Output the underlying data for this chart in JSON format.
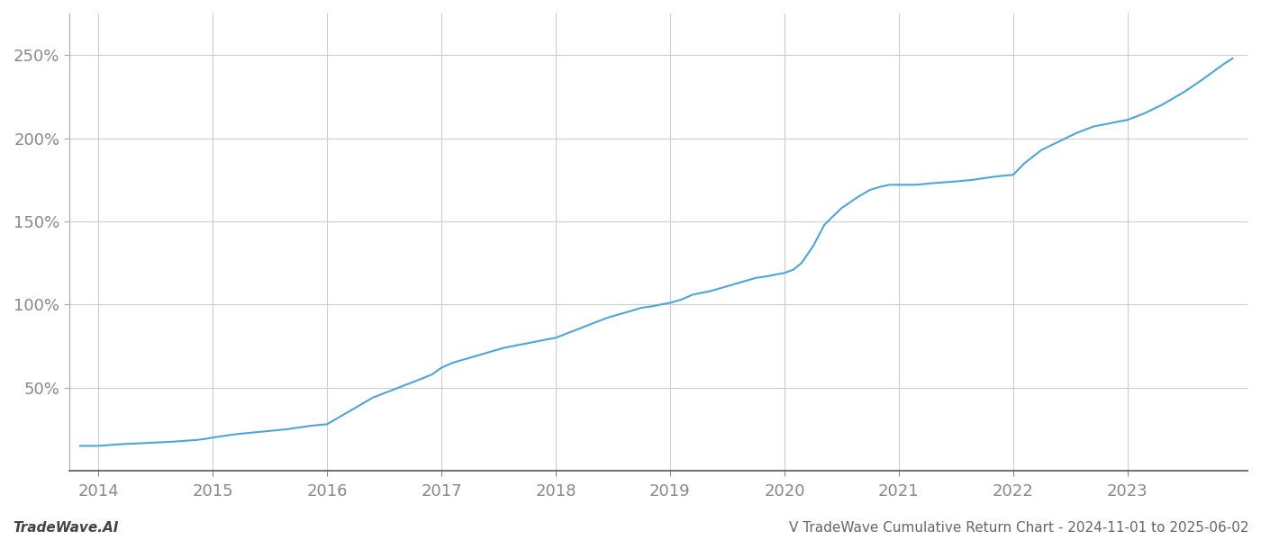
{
  "title_right": "V TradeWave Cumulative Return Chart - 2024-11-01 to 2025-06-02",
  "title_left": "TradeWave.AI",
  "line_color": "#4da6d9",
  "background_color": "#ffffff",
  "grid_color": "#cccccc",
  "x_years": [
    2014,
    2015,
    2016,
    2017,
    2018,
    2019,
    2020,
    2021,
    2022,
    2023
  ],
  "data_points": {
    "x": [
      2013.84,
      2013.92,
      2014.0,
      2014.1,
      2014.2,
      2014.35,
      2014.5,
      2014.65,
      2014.75,
      2014.85,
      2014.92,
      2015.0,
      2015.1,
      2015.2,
      2015.35,
      2015.5,
      2015.65,
      2015.75,
      2015.85,
      2015.92,
      2016.0,
      2016.1,
      2016.25,
      2016.4,
      2016.55,
      2016.7,
      2016.85,
      2016.92,
      2017.0,
      2017.1,
      2017.25,
      2017.4,
      2017.55,
      2017.7,
      2017.85,
      2017.92,
      2018.0,
      2018.15,
      2018.3,
      2018.45,
      2018.6,
      2018.75,
      2018.85,
      2018.92,
      2019.0,
      2019.1,
      2019.2,
      2019.35,
      2019.5,
      2019.65,
      2019.75,
      2019.85,
      2019.92,
      2020.0,
      2020.08,
      2020.15,
      2020.25,
      2020.35,
      2020.5,
      2020.65,
      2020.75,
      2020.85,
      2020.92,
      2021.0,
      2021.15,
      2021.3,
      2021.5,
      2021.65,
      2021.75,
      2021.85,
      2021.92,
      2022.0,
      2022.1,
      2022.25,
      2022.4,
      2022.55,
      2022.7,
      2022.85,
      2022.92,
      2023.0,
      2023.15,
      2023.3,
      2023.5,
      2023.65,
      2023.75,
      2023.85,
      2023.92
    ],
    "y": [
      15,
      15,
      15,
      15.5,
      16,
      16.5,
      17,
      17.5,
      18,
      18.5,
      19,
      20,
      21,
      22,
      23,
      24,
      25,
      26,
      27,
      27.5,
      28,
      32,
      38,
      44,
      48,
      52,
      56,
      58,
      62,
      65,
      68,
      71,
      74,
      76,
      78,
      79,
      80,
      84,
      88,
      92,
      95,
      98,
      99,
      100,
      101,
      103,
      106,
      108,
      111,
      114,
      116,
      117,
      118,
      119,
      121,
      125,
      135,
      148,
      158,
      165,
      169,
      171,
      172,
      172,
      172,
      173,
      174,
      175,
      176,
      177,
      177.5,
      178,
      185,
      193,
      198,
      203,
      207,
      209,
      210,
      211,
      215,
      220,
      228,
      235,
      240,
      245,
      248
    ]
  },
  "ylim": [
    0,
    275
  ],
  "xlim": [
    2013.75,
    2024.05
  ],
  "yticks": [
    50,
    100,
    150,
    200,
    250
  ],
  "ytick_labels": [
    "50%",
    "100%",
    "150%",
    "200%",
    "250%"
  ],
  "label_fontsize": 11,
  "tick_fontsize": 13,
  "footer_fontsize": 11,
  "line_width": 1.5
}
